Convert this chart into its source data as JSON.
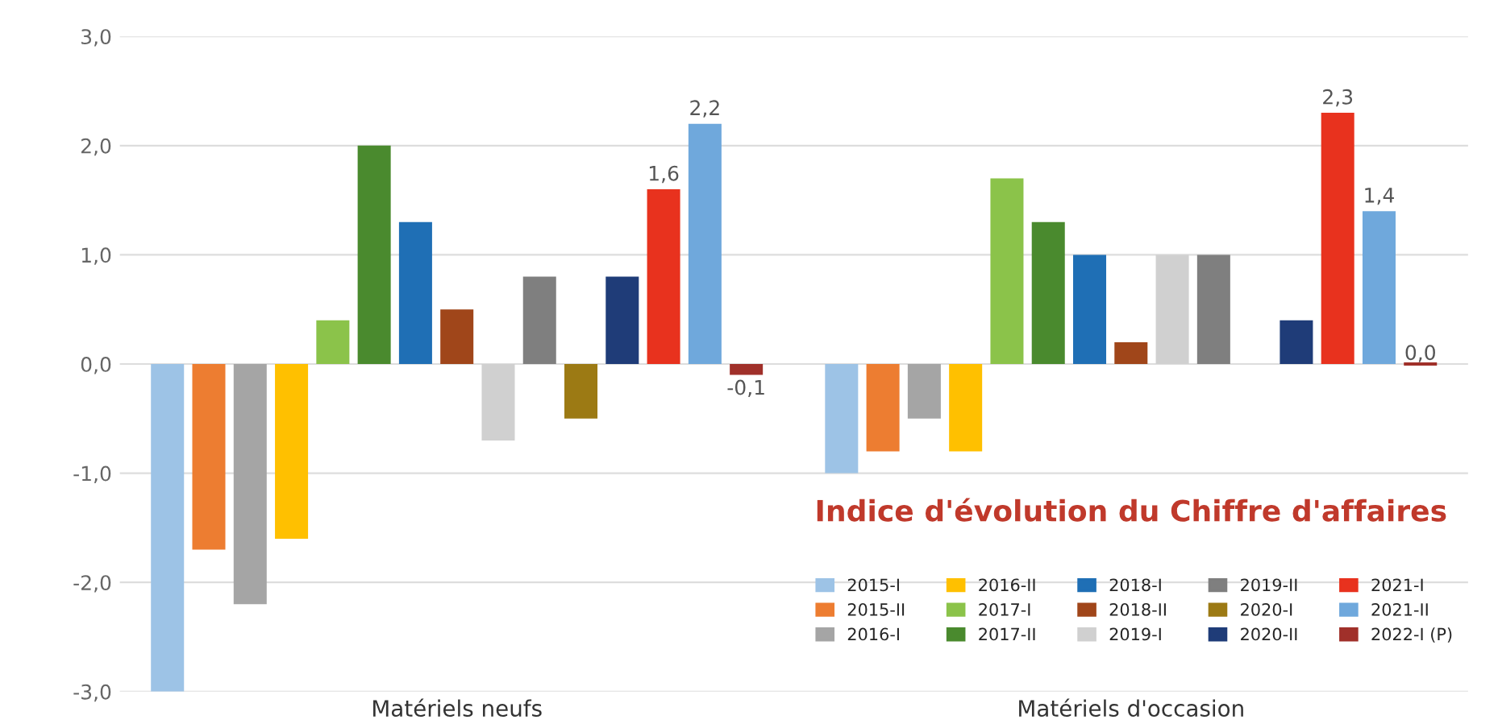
{
  "chart_data": {
    "type": "bar",
    "title": "Indice d'évolution du Chiffre d'affaires",
    "categories": [
      "Matériels neufs",
      "Matériels d'occasion"
    ],
    "ylim": [
      -3,
      3
    ],
    "yticks": [
      {
        "value": -3,
        "label": "-3,0"
      },
      {
        "value": -2,
        "label": "-2,0"
      },
      {
        "value": -1,
        "label": "-1,0"
      },
      {
        "value": 0,
        "label": "0,0"
      },
      {
        "value": 1,
        "label": "1,0"
      },
      {
        "value": 2,
        "label": "2,0"
      },
      {
        "value": 3,
        "label": "3,0"
      }
    ],
    "grid": "y",
    "legend": "bottom right",
    "series": [
      {
        "name": "2015-I",
        "color": "#9dc3e6",
        "values": [
          -3.0,
          -1.0
        ]
      },
      {
        "name": "2015-II",
        "color": "#ed7d31",
        "values": [
          -1.7,
          -0.8
        ]
      },
      {
        "name": "2016-I",
        "color": "#a5a5a5",
        "values": [
          -2.2,
          -0.5
        ]
      },
      {
        "name": "2016-II",
        "color": "#ffc000",
        "values": [
          -1.6,
          -0.8
        ]
      },
      {
        "name": "2017-I",
        "color": "#8bc34a",
        "values": [
          0.4,
          1.7
        ]
      },
      {
        "name": "2017-II",
        "color": "#4a8a2e",
        "values": [
          2.0,
          1.3
        ]
      },
      {
        "name": "2018-I",
        "color": "#1f6fb5",
        "values": [
          1.3,
          1.0
        ]
      },
      {
        "name": "2018-II",
        "color": "#a0461a",
        "values": [
          0.5,
          0.2
        ]
      },
      {
        "name": "2019-I",
        "color": "#d0d0d0",
        "values": [
          -0.7,
          1.0
        ]
      },
      {
        "name": "2019-II",
        "color": "#7f7f7f",
        "values": [
          0.8,
          1.0
        ]
      },
      {
        "name": "2020-I",
        "color": "#9c7a14",
        "values": [
          -0.5,
          0.0
        ]
      },
      {
        "name": "2020-II",
        "color": "#1f3c78",
        "values": [
          0.8,
          0.4
        ]
      },
      {
        "name": "2021-I",
        "color": "#e8321e",
        "values": [
          1.6,
          2.3
        ],
        "value_labels": [
          "1,6",
          "2,3"
        ]
      },
      {
        "name": "2021-II",
        "color": "#6fa8dc",
        "values": [
          2.2,
          1.4
        ],
        "value_labels": [
          "2,2",
          "1,4"
        ]
      },
      {
        "name": "2022-I (P)",
        "color": "#a0302a",
        "values": [
          -0.1,
          0.0
        ],
        "value_labels": [
          "-0,1",
          "0,0"
        ]
      }
    ]
  }
}
